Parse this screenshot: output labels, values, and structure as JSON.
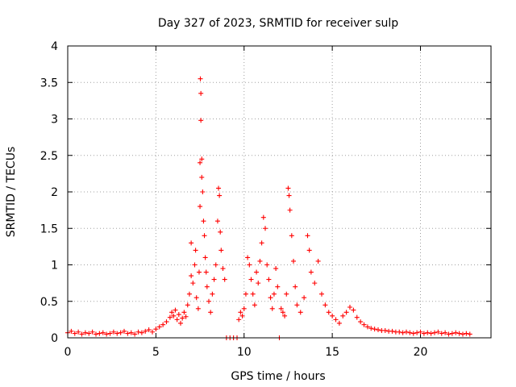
{
  "chart_data": {
    "type": "scatter",
    "title": "Day 327 of 2023, SRMTID for receiver sulp",
    "xlabel": "GPS time / hours",
    "ylabel": "SRMTID / TECUs",
    "xlim": [
      0,
      24
    ],
    "ylim": [
      0,
      4
    ],
    "xticks": [
      0,
      5,
      10,
      15,
      20
    ],
    "yticks": [
      0,
      0.5,
      1,
      1.5,
      2,
      2.5,
      3,
      3.5,
      4
    ],
    "xtick_labels": [
      "0",
      "5",
      "10",
      "15",
      "20"
    ],
    "ytick_labels": [
      "0",
      "0.5",
      "1",
      "1.5",
      "2",
      "2.5",
      "3",
      "3.5",
      "4"
    ],
    "grid": true,
    "marker": "plus",
    "color": "#ff0000",
    "series": [
      {
        "name": "SRMTID",
        "points": [
          [
            0.0,
            0.07
          ],
          [
            0.2,
            0.09
          ],
          [
            0.4,
            0.06
          ],
          [
            0.6,
            0.08
          ],
          [
            0.8,
            0.05
          ],
          [
            1.0,
            0.07
          ],
          [
            1.2,
            0.06
          ],
          [
            1.4,
            0.08
          ],
          [
            1.6,
            0.05
          ],
          [
            1.8,
            0.06
          ],
          [
            2.0,
            0.07
          ],
          [
            2.2,
            0.05
          ],
          [
            2.4,
            0.06
          ],
          [
            2.6,
            0.08
          ],
          [
            2.8,
            0.06
          ],
          [
            3.0,
            0.07
          ],
          [
            3.2,
            0.09
          ],
          [
            3.4,
            0.06
          ],
          [
            3.6,
            0.07
          ],
          [
            3.8,
            0.05
          ],
          [
            4.0,
            0.08
          ],
          [
            4.2,
            0.07
          ],
          [
            4.4,
            0.09
          ],
          [
            4.6,
            0.11
          ],
          [
            4.8,
            0.08
          ],
          [
            5.0,
            0.12
          ],
          [
            5.2,
            0.15
          ],
          [
            5.4,
            0.18
          ],
          [
            5.6,
            0.22
          ],
          [
            5.8,
            0.28
          ],
          [
            5.9,
            0.35
          ],
          [
            6.0,
            0.3
          ],
          [
            6.1,
            0.38
          ],
          [
            6.2,
            0.25
          ],
          [
            6.3,
            0.32
          ],
          [
            6.4,
            0.2
          ],
          [
            6.5,
            0.27
          ],
          [
            6.6,
            0.35
          ],
          [
            6.7,
            0.29
          ],
          [
            6.8,
            0.45
          ],
          [
            6.9,
            0.6
          ],
          [
            7.0,
            0.85
          ],
          [
            7.0,
            1.3
          ],
          [
            7.1,
            0.75
          ],
          [
            7.2,
            1.0
          ],
          [
            7.25,
            1.2
          ],
          [
            7.3,
            0.55
          ],
          [
            7.4,
            0.4
          ],
          [
            7.45,
            0.9
          ],
          [
            7.5,
            1.8
          ],
          [
            7.5,
            2.4
          ],
          [
            7.52,
            3.55
          ],
          [
            7.55,
            3.35
          ],
          [
            7.55,
            2.98
          ],
          [
            7.6,
            2.45
          ],
          [
            7.6,
            2.2
          ],
          [
            7.65,
            2.0
          ],
          [
            7.7,
            1.6
          ],
          [
            7.75,
            1.4
          ],
          [
            7.8,
            1.1
          ],
          [
            7.85,
            0.9
          ],
          [
            7.9,
            0.7
          ],
          [
            8.0,
            0.5
          ],
          [
            8.1,
            0.35
          ],
          [
            8.2,
            0.6
          ],
          [
            8.3,
            0.8
          ],
          [
            8.4,
            1.0
          ],
          [
            8.5,
            1.6
          ],
          [
            8.55,
            2.05
          ],
          [
            8.6,
            1.95
          ],
          [
            8.65,
            1.45
          ],
          [
            8.7,
            1.2
          ],
          [
            8.8,
            0.95
          ],
          [
            8.9,
            0.8
          ],
          [
            9.0,
            0.0
          ],
          [
            9.2,
            0.0
          ],
          [
            9.4,
            0.0
          ],
          [
            9.6,
            0.0
          ],
          [
            9.7,
            0.25
          ],
          [
            9.8,
            0.35
          ],
          [
            9.9,
            0.3
          ],
          [
            10.0,
            0.4
          ],
          [
            10.1,
            0.6
          ],
          [
            10.2,
            1.1
          ],
          [
            10.3,
            1.0
          ],
          [
            10.4,
            0.8
          ],
          [
            10.5,
            0.6
          ],
          [
            10.6,
            0.45
          ],
          [
            10.7,
            0.9
          ],
          [
            10.8,
            0.75
          ],
          [
            10.9,
            1.05
          ],
          [
            11.0,
            1.3
          ],
          [
            11.1,
            1.65
          ],
          [
            11.2,
            1.5
          ],
          [
            11.3,
            1.0
          ],
          [
            11.4,
            0.8
          ],
          [
            11.5,
            0.55
          ],
          [
            11.6,
            0.4
          ],
          [
            11.7,
            0.6
          ],
          [
            11.8,
            0.95
          ],
          [
            11.9,
            0.7
          ],
          [
            12.0,
            0.0
          ],
          [
            12.1,
            0.4
          ],
          [
            12.2,
            0.35
          ],
          [
            12.3,
            0.3
          ],
          [
            12.4,
            0.6
          ],
          [
            12.5,
            2.05
          ],
          [
            12.55,
            1.95
          ],
          [
            12.6,
            1.75
          ],
          [
            12.7,
            1.4
          ],
          [
            12.8,
            1.05
          ],
          [
            12.9,
            0.7
          ],
          [
            13.0,
            0.45
          ],
          [
            13.2,
            0.35
          ],
          [
            13.4,
            0.55
          ],
          [
            13.6,
            1.4
          ],
          [
            13.7,
            1.2
          ],
          [
            13.8,
            0.9
          ],
          [
            14.0,
            0.75
          ],
          [
            14.2,
            1.05
          ],
          [
            14.4,
            0.6
          ],
          [
            14.6,
            0.45
          ],
          [
            14.8,
            0.35
          ],
          [
            15.0,
            0.3
          ],
          [
            15.2,
            0.25
          ],
          [
            15.4,
            0.2
          ],
          [
            15.6,
            0.3
          ],
          [
            15.8,
            0.35
          ],
          [
            16.0,
            0.42
          ],
          [
            16.2,
            0.38
          ],
          [
            16.4,
            0.28
          ],
          [
            16.6,
            0.22
          ],
          [
            16.8,
            0.18
          ],
          [
            17.0,
            0.15
          ],
          [
            17.2,
            0.13
          ],
          [
            17.4,
            0.12
          ],
          [
            17.6,
            0.11
          ],
          [
            17.8,
            0.1
          ],
          [
            18.0,
            0.1
          ],
          [
            18.2,
            0.09
          ],
          [
            18.4,
            0.09
          ],
          [
            18.6,
            0.08
          ],
          [
            18.8,
            0.08
          ],
          [
            19.0,
            0.07
          ],
          [
            19.2,
            0.08
          ],
          [
            19.4,
            0.07
          ],
          [
            19.6,
            0.06
          ],
          [
            19.8,
            0.07
          ],
          [
            20.0,
            0.08
          ],
          [
            20.2,
            0.06
          ],
          [
            20.4,
            0.07
          ],
          [
            20.6,
            0.06
          ],
          [
            20.8,
            0.07
          ],
          [
            21.0,
            0.08
          ],
          [
            21.2,
            0.06
          ],
          [
            21.4,
            0.07
          ],
          [
            21.6,
            0.05
          ],
          [
            21.8,
            0.06
          ],
          [
            22.0,
            0.07
          ],
          [
            22.2,
            0.06
          ],
          [
            22.4,
            0.05
          ],
          [
            22.6,
            0.06
          ],
          [
            22.8,
            0.05
          ]
        ]
      }
    ]
  }
}
